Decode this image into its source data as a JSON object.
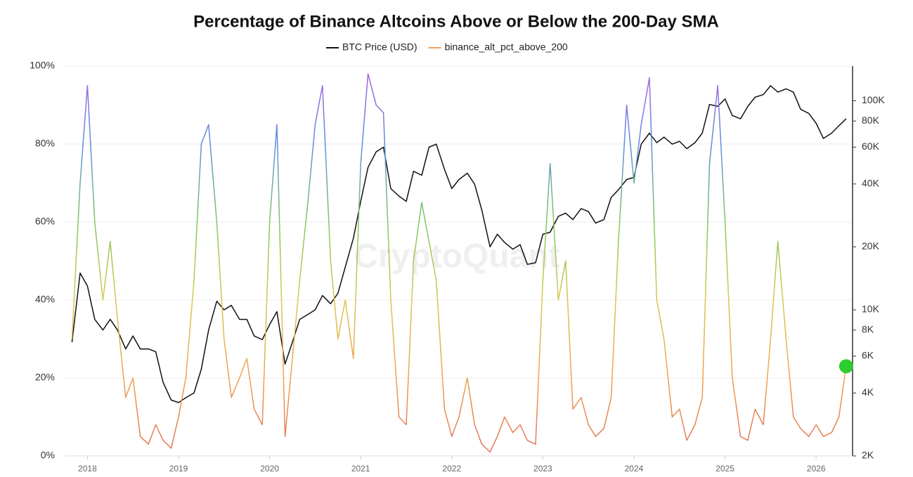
{
  "chart_data": {
    "type": "line",
    "title": "Percentage of Binance Altcoins Above or Below the 200-Day SMA",
    "watermark": "CryptoQuant",
    "x": [
      2017.83,
      2017.92,
      2018.0,
      2018.08,
      2018.17,
      2018.25,
      2018.33,
      2018.42,
      2018.5,
      2018.58,
      2018.67,
      2018.75,
      2018.83,
      2018.92,
      2019.0,
      2019.08,
      2019.17,
      2019.25,
      2019.33,
      2019.42,
      2019.5,
      2019.58,
      2019.67,
      2019.75,
      2019.83,
      2019.92,
      2020.0,
      2020.08,
      2020.17,
      2020.25,
      2020.33,
      2020.42,
      2020.5,
      2020.58,
      2020.67,
      2020.75,
      2020.83,
      2020.92,
      2021.0,
      2021.08,
      2021.17,
      2021.25,
      2021.33,
      2021.42,
      2021.5,
      2021.58,
      2021.67,
      2021.75,
      2021.83,
      2021.92,
      2022.0,
      2022.08,
      2022.17,
      2022.25,
      2022.33,
      2022.42,
      2022.5,
      2022.58,
      2022.67,
      2022.75,
      2022.83,
      2022.92,
      2023.0,
      2023.08,
      2023.17,
      2023.25,
      2023.33,
      2023.42,
      2023.5,
      2023.58,
      2023.67,
      2023.75,
      2023.83,
      2023.92,
      2024.0,
      2024.08,
      2024.17,
      2024.25,
      2024.33,
      2024.42,
      2024.5,
      2024.58,
      2024.67,
      2024.75,
      2024.83,
      2024.92,
      2025.0,
      2025.08,
      2025.17,
      2025.25,
      2025.33,
      2025.42,
      2025.5,
      2025.58,
      2025.67,
      2025.75,
      2025.83,
      2025.92,
      2026.0,
      2026.08,
      2026.17,
      2026.25,
      2026.33
    ],
    "series": [
      {
        "name": "BTC Price (USD)",
        "color": "#111111",
        "axis": "y2",
        "values": [
          7000,
          15000,
          13000,
          9000,
          8000,
          9000,
          8000,
          6500,
          7500,
          6500,
          6500,
          6300,
          4500,
          3700,
          3600,
          3800,
          4000,
          5200,
          8000,
          11000,
          10000,
          10500,
          9000,
          9000,
          7500,
          7200,
          8500,
          9800,
          5500,
          7000,
          9000,
          9500,
          10000,
          11700,
          10700,
          12000,
          16000,
          22000,
          33000,
          48000,
          57000,
          60000,
          38000,
          35000,
          33000,
          46000,
          44000,
          60000,
          62000,
          47000,
          38000,
          42000,
          45000,
          40000,
          30000,
          20000,
          23000,
          21000,
          19500,
          20500,
          16500,
          16800,
          23000,
          23500,
          28000,
          29000,
          27000,
          30500,
          29500,
          26000,
          27000,
          34500,
          37500,
          42000,
          43000,
          62000,
          70000,
          63000,
          67000,
          62000,
          64000,
          59000,
          63000,
          70000,
          96000,
          94000,
          102000,
          85000,
          82000,
          94000,
          104000,
          107000,
          118000,
          110000,
          114000,
          110000,
          91000,
          87000,
          78000,
          66000,
          70000,
          76000,
          82000
        ]
      },
      {
        "name": "binance_alt_pct_above_200",
        "color": "#f0a060",
        "gradient": [
          "#e0705a",
          "#f0a050",
          "#d8c850",
          "#80c860",
          "#5a90e0",
          "#b060e0"
        ],
        "last_marker_color": "#2ecc2e",
        "values": [
          30,
          70,
          95,
          60,
          40,
          55,
          35,
          15,
          20,
          5,
          3,
          8,
          4,
          2,
          10,
          20,
          45,
          80,
          85,
          60,
          30,
          15,
          20,
          25,
          12,
          8,
          60,
          85,
          5,
          25,
          45,
          65,
          85,
          95,
          50,
          30,
          40,
          25,
          75,
          98,
          90,
          88,
          40,
          10,
          8,
          50,
          65,
          55,
          45,
          12,
          5,
          10,
          20,
          8,
          3,
          1,
          5,
          10,
          6,
          8,
          4,
          3,
          45,
          75,
          40,
          50,
          12,
          15,
          8,
          5,
          7,
          15,
          55,
          90,
          70,
          85,
          97,
          40,
          30,
          10,
          12,
          4,
          8,
          15,
          75,
          95,
          60,
          20,
          5,
          4,
          12,
          8,
          30,
          55,
          30,
          10,
          7,
          5,
          8,
          5,
          6,
          10,
          23
        ]
      }
    ],
    "xlim": [
      2017.75,
      2026.4
    ],
    "xticks": [
      2018,
      2019,
      2020,
      2021,
      2022,
      2023,
      2024,
      2025,
      2026
    ],
    "ylim": [
      0,
      100
    ],
    "yticks": [
      {
        "value": 0,
        "label": "0%"
      },
      {
        "value": 20,
        "label": "20%"
      },
      {
        "value": 40,
        "label": "40%"
      },
      {
        "value": 60,
        "label": "60%"
      },
      {
        "value": 80,
        "label": "80%"
      },
      {
        "value": 100,
        "label": "100%"
      }
    ],
    "y2lim": [
      2000,
      146600
    ],
    "y2log": true,
    "y2ticks": [
      {
        "value": 2000,
        "label": "2K"
      },
      {
        "value": 4000,
        "label": "4K"
      },
      {
        "value": 6000,
        "label": "6K"
      },
      {
        "value": 8000,
        "label": "8K"
      },
      {
        "value": 10000,
        "label": "10K"
      },
      {
        "value": 20000,
        "label": "20K"
      },
      {
        "value": 40000,
        "label": "40K"
      },
      {
        "value": 60000,
        "label": "60K"
      },
      {
        "value": 80000,
        "label": "80K"
      },
      {
        "value": 100000,
        "label": "100K"
      }
    ],
    "grid": true
  }
}
